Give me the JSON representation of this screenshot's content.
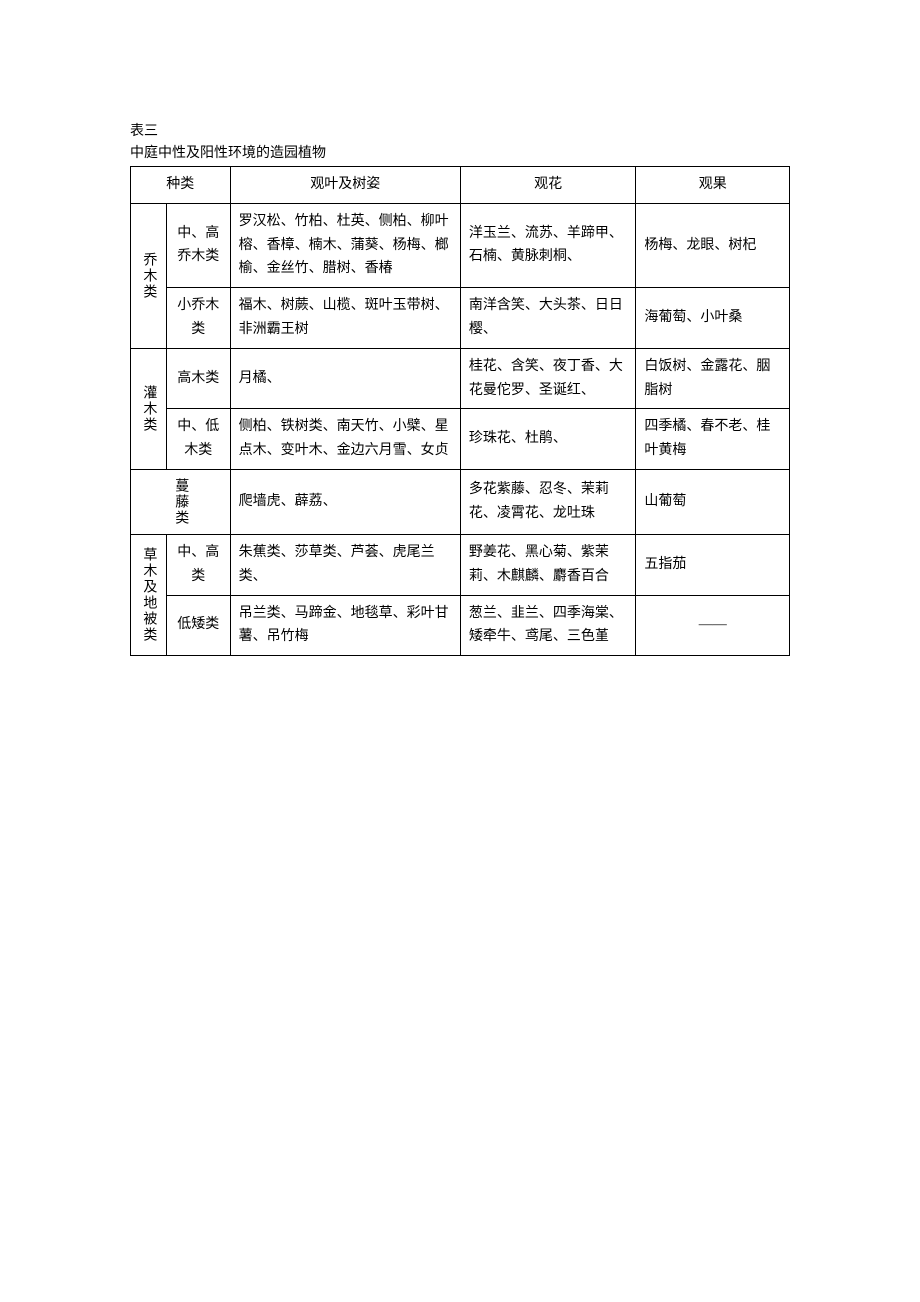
{
  "title_label": "表三",
  "subtitle": "中庭中性及阳性环境的造园植物",
  "headers": {
    "category": "种类",
    "leaf_shape": "观叶及树姿",
    "flower": "观花",
    "fruit": "观果"
  },
  "groups": [
    {
      "name": "乔木类",
      "rows": [
        {
          "sub": "中、高乔木类",
          "leaf": "罗汉松、竹柏、杜英、侧柏、柳叶榕、香樟、楠木、蒲葵、杨梅、榔榆、金丝竹、腊树、香椿",
          "flower": "洋玉兰、流苏、羊蹄甲、石楠、黄脉刺桐、",
          "fruit": "杨梅、龙眼、树杞"
        },
        {
          "sub": "小乔木 类",
          "leaf": "福木、树蕨、山榄、斑叶玉带树、非洲霸王树",
          "flower": "南洋含笑、大头茶、日日樱、",
          "fruit": "海葡萄、小叶桑"
        }
      ]
    },
    {
      "name": "灌木类",
      "rows": [
        {
          "sub": "高木类",
          "leaf": "月橘、",
          "flower": "桂花、含笑、夜丁香、大花曼佗罗、圣诞红、",
          "fruit": "白饭树、金露花、胭脂树"
        },
        {
          "sub": "中、低木类",
          "leaf": "侧柏、铁树类、南天竹、小檗、星点木、变叶木、金边六月雪、女贞",
          "flower": "珍珠花、杜鹃、",
          "fruit": "四季橘、春不老、桂叶黄梅"
        }
      ]
    },
    {
      "name": "蔓藤类",
      "single": true,
      "rows": [
        {
          "sub": "",
          "leaf": "爬墙虎、薜荔、",
          "flower": "多花紫藤、忍冬、茉莉花、凌霄花、龙吐珠",
          "fruit": "山葡萄"
        }
      ]
    },
    {
      "name": "草木及地被类",
      "rows": [
        {
          "sub": "中、高类",
          "leaf": "朱蕉类、莎草类、芦荟、虎尾兰类、",
          "flower": "野姜花、黑心菊、紫茉莉、木麒麟、麝香百合",
          "fruit": "五指茄"
        },
        {
          "sub": "低矮类",
          "leaf": "吊兰类、马蹄金、地毯草、彩叶甘薯、吊竹梅",
          "flower": "葱兰、韭兰、四季海棠、矮牵牛、鸢尾、三色堇",
          "fruit": "——"
        }
      ]
    }
  ]
}
